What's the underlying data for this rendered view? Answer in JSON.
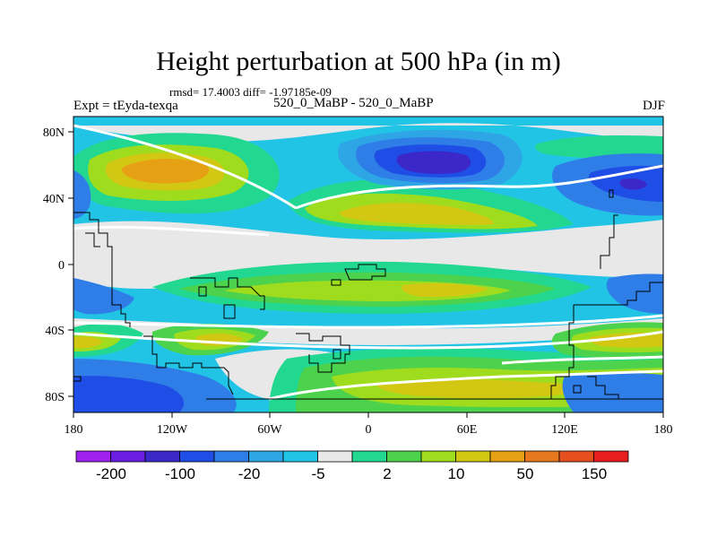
{
  "title": "Height perturbation at 500 hPa (in m)",
  "stats": "rmsd= 17.4003 diff= -1.97185e-09",
  "left_label": "Expt = tEyda-texqa",
  "center_label": "520_0_MaBP - 520_0_MaBP",
  "right_label": "DJF",
  "lat_ticks": [
    "80N",
    "40N",
    "0",
    "40S",
    "80S"
  ],
  "lon_ticks": [
    "180",
    "120W",
    "60W",
    "0",
    "60E",
    "120E",
    "180"
  ],
  "colorbar": {
    "colors": [
      "#a020f0",
      "#6a1fe0",
      "#3c28c8",
      "#1e4ee6",
      "#2f7ee8",
      "#2ea6e6",
      "#22c4e6",
      "#e8e8e8",
      "#22d890",
      "#4cd24c",
      "#a0dc1e",
      "#d2c814",
      "#e6a014",
      "#e6781e",
      "#e6501e",
      "#e61e1e"
    ],
    "labels": [
      "-200",
      "-100",
      "-20",
      "-5",
      "2",
      "10",
      "50",
      "150"
    ]
  }
}
